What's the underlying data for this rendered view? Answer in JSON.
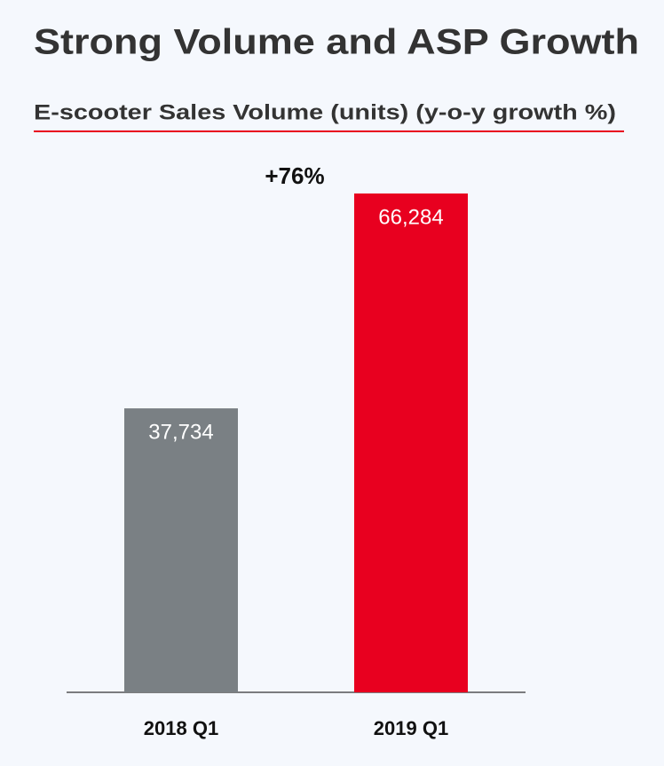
{
  "chart_data": {
    "type": "bar",
    "title": "Strong Volume and ASP Growth",
    "subtitle": "E-scooter Sales Volume (units) (y-o-y growth %)",
    "annotation": "+76%",
    "categories": [
      "2018 Q1",
      "2019 Q1"
    ],
    "values": [
      37734,
      66284
    ],
    "value_labels": [
      "37,734",
      "66,284"
    ],
    "colors": [
      "#7a8084",
      "#e8001f"
    ]
  }
}
